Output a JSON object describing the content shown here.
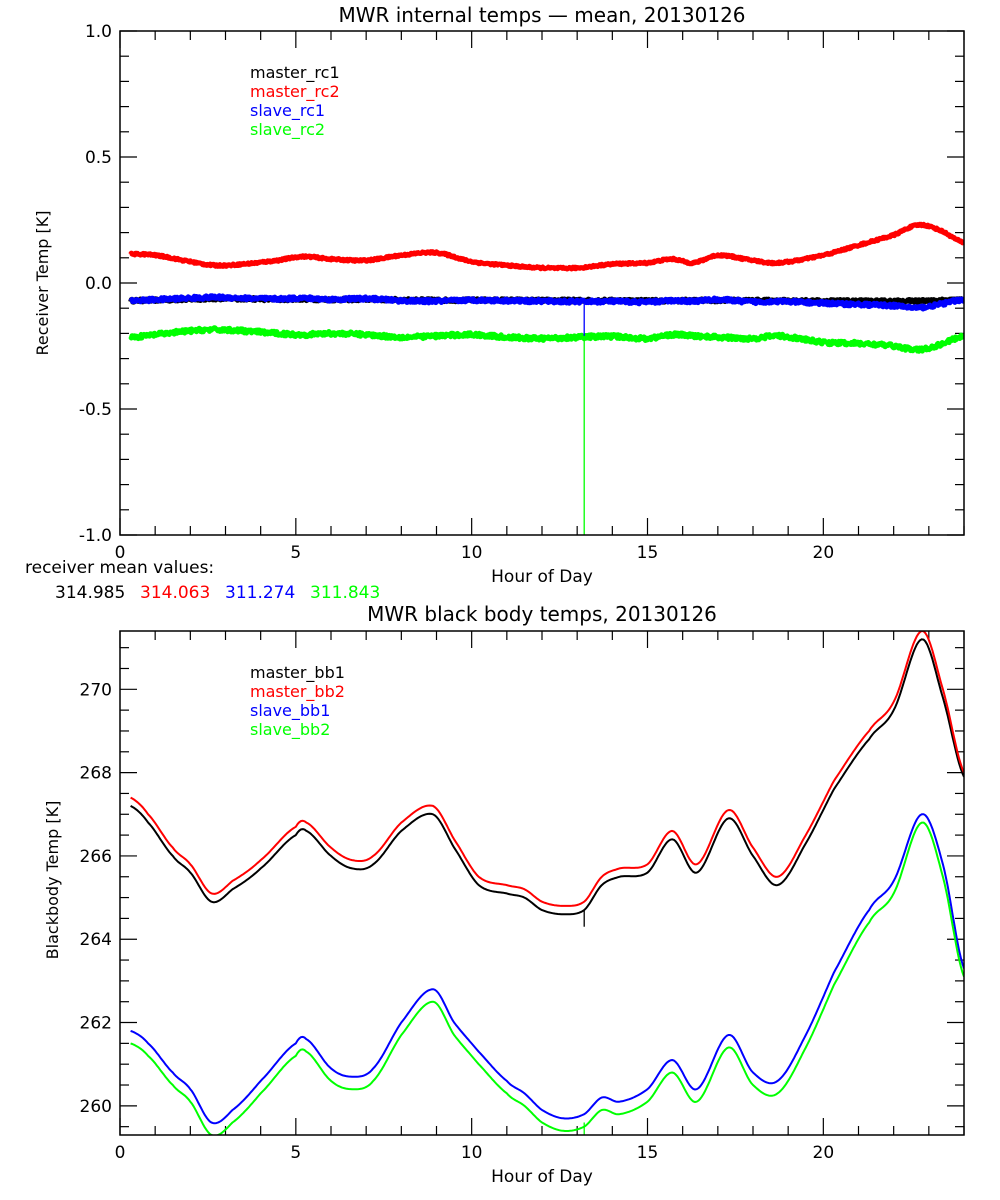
{
  "chart_data": [
    {
      "type": "line",
      "title": "MWR internal temps — mean, 20130126",
      "xlabel": "Hour of Day",
      "ylabel": "Receiver Temp [K]",
      "xlim": [
        0,
        24
      ],
      "ylim": [
        -1.0,
        1.0
      ],
      "xticks": [
        "0",
        "5",
        "10",
        "15",
        "20"
      ],
      "yticks": [
        "1.0",
        "0.5",
        "0.0",
        "-0.5",
        "-1.0"
      ],
      "ytick_values": [
        1.0,
        0.5,
        0.0,
        -0.5,
        -1.0
      ],
      "xtick_values": [
        0,
        5,
        10,
        15,
        20
      ],
      "legend_position": "top-left",
      "legend": [
        "master_rc1",
        "master_rc2",
        "slave_rc1",
        "slave_rc2"
      ],
      "x": [
        0.3,
        1,
        2,
        2.7,
        3.5,
        4.5,
        5.2,
        6,
        7,
        8,
        9,
        10,
        11,
        12,
        13,
        14,
        15,
        15.7,
        16.3,
        17,
        18,
        18.7,
        20,
        21,
        22,
        22.7,
        23.3,
        24
      ],
      "series": [
        {
          "name": "master_rc1",
          "color": "#000000",
          "noise": 0.006,
          "values": [
            -0.07,
            -0.068,
            -0.065,
            -0.062,
            -0.063,
            -0.065,
            -0.064,
            -0.066,
            -0.065,
            -0.067,
            -0.068,
            -0.068,
            -0.068,
            -0.069,
            -0.069,
            -0.069,
            -0.07,
            -0.07,
            -0.069,
            -0.069,
            -0.069,
            -0.07,
            -0.071,
            -0.072,
            -0.072,
            -0.071,
            -0.07,
            -0.066
          ]
        },
        {
          "name": "master_rc2",
          "color": "#ff0000",
          "noise": 0.004,
          "values": [
            0.115,
            0.11,
            0.085,
            0.07,
            0.075,
            0.09,
            0.105,
            0.095,
            0.09,
            0.11,
            0.12,
            0.085,
            0.07,
            0.06,
            0.06,
            0.075,
            0.08,
            0.095,
            0.08,
            0.11,
            0.09,
            0.08,
            0.11,
            0.15,
            0.19,
            0.23,
            0.21,
            0.16
          ]
        },
        {
          "name": "slave_rc1",
          "color": "#0000ff",
          "noise": 0.007,
          "values": [
            -0.07,
            -0.066,
            -0.06,
            -0.057,
            -0.06,
            -0.063,
            -0.06,
            -0.065,
            -0.062,
            -0.07,
            -0.072,
            -0.068,
            -0.07,
            -0.072,
            -0.074,
            -0.073,
            -0.076,
            -0.07,
            -0.072,
            -0.066,
            -0.075,
            -0.073,
            -0.08,
            -0.085,
            -0.09,
            -0.098,
            -0.085,
            -0.065
          ]
        },
        {
          "name": "slave_rc2",
          "color": "#00ff00",
          "noise": 0.008,
          "values": [
            -0.215,
            -0.205,
            -0.19,
            -0.185,
            -0.19,
            -0.2,
            -0.205,
            -0.2,
            -0.205,
            -0.215,
            -0.21,
            -0.205,
            -0.215,
            -0.22,
            -0.215,
            -0.212,
            -0.22,
            -0.205,
            -0.21,
            -0.215,
            -0.22,
            -0.21,
            -0.235,
            -0.24,
            -0.25,
            -0.265,
            -0.245,
            -0.21
          ]
        }
      ],
      "spikes": [
        {
          "x": 13.2,
          "color": "#00ff00",
          "from": -0.21,
          "to": -1.0
        },
        {
          "x": 13.2,
          "color": "#0000ff",
          "from": -0.07,
          "to": -0.21
        }
      ]
    },
    {
      "type": "line",
      "title": "MWR black body temps, 20130126",
      "xlabel": "Hour of Day",
      "ylabel": "Blackbody Temp [K]",
      "xlim": [
        0,
        24
      ],
      "ylim": [
        259.3,
        271.4
      ],
      "xticks": [
        "0",
        "5",
        "10",
        "15",
        "20"
      ],
      "xtick_values": [
        0,
        5,
        10,
        15,
        20
      ],
      "yticks": [
        "260",
        "262",
        "264",
        "266",
        "268",
        "270"
      ],
      "ytick_values": [
        260,
        262,
        264,
        266,
        268,
        270
      ],
      "legend_position": "top-left",
      "legend": [
        "master_bb1",
        "master_bb2",
        "slave_bb1",
        "slave_bb2"
      ],
      "x": [
        0.3,
        0.8,
        1.5,
        2.0,
        2.6,
        3.2,
        4.0,
        5.0,
        5.3,
        6.0,
        6.6,
        7.2,
        8.0,
        8.9,
        9.5,
        10.2,
        11.0,
        11.5,
        12.0,
        12.6,
        13.2,
        13.7,
        14.2,
        15.0,
        15.7,
        16.4,
        17.3,
        18.0,
        18.7,
        19.5,
        20.3,
        21.3,
        22.0,
        22.8,
        23.4,
        24.0
      ],
      "series": [
        {
          "name": "master_bb1",
          "color": "#000000",
          "values": [
            267.2,
            266.8,
            266.0,
            265.6,
            264.9,
            265.2,
            265.7,
            266.5,
            266.6,
            266.0,
            265.7,
            265.8,
            266.6,
            267.0,
            266.2,
            265.3,
            265.1,
            265.0,
            264.7,
            264.6,
            264.7,
            265.3,
            265.5,
            265.6,
            266.4,
            265.6,
            266.9,
            266.0,
            265.3,
            266.3,
            267.6,
            268.8,
            269.5,
            271.2,
            269.8,
            267.9
          ]
        },
        {
          "name": "master_bb2",
          "color": "#ff0000",
          "values": [
            267.4,
            267.0,
            266.2,
            265.8,
            265.1,
            265.4,
            265.9,
            266.7,
            266.8,
            266.2,
            265.9,
            266.0,
            266.8,
            267.2,
            266.4,
            265.5,
            265.3,
            265.2,
            264.9,
            264.8,
            264.9,
            265.5,
            265.7,
            265.8,
            266.6,
            265.8,
            267.1,
            266.2,
            265.5,
            266.5,
            267.8,
            269.0,
            269.7,
            271.4,
            270.0,
            268.0
          ]
        },
        {
          "name": "slave_bb1",
          "color": "#0000ff",
          "values": [
            261.8,
            261.5,
            260.8,
            260.4,
            259.6,
            259.9,
            260.6,
            261.5,
            261.6,
            260.9,
            260.7,
            260.9,
            262.0,
            262.8,
            262.0,
            261.3,
            260.6,
            260.3,
            259.9,
            259.7,
            259.8,
            260.2,
            260.1,
            260.4,
            261.1,
            260.4,
            261.7,
            260.8,
            260.6,
            261.7,
            263.2,
            264.7,
            265.4,
            267.0,
            265.8,
            263.3
          ]
        },
        {
          "name": "slave_bb2",
          "color": "#00ff00",
          "values": [
            261.5,
            261.2,
            260.5,
            260.1,
            259.3,
            259.6,
            260.3,
            261.2,
            261.3,
            260.6,
            260.4,
            260.6,
            261.7,
            262.5,
            261.7,
            261.0,
            260.3,
            260.0,
            259.6,
            259.4,
            259.5,
            259.9,
            259.8,
            260.1,
            260.8,
            260.1,
            261.4,
            260.5,
            260.3,
            261.4,
            262.9,
            264.4,
            265.1,
            266.8,
            265.5,
            263.1
          ]
        }
      ],
      "spikes": [
        {
          "x": 13.2,
          "color": "#000000",
          "from": 264.7,
          "to": 264.3
        },
        {
          "x": 13.2,
          "color": "#00ff00",
          "from": 259.6,
          "to": 259.3
        }
      ]
    }
  ],
  "receiver_mean": {
    "label": "receiver mean values:",
    "values": [
      {
        "text": "314.985",
        "color": "#000000"
      },
      {
        "text": "314.063",
        "color": "#ff0000"
      },
      {
        "text": "311.274",
        "color": "#0000ff"
      },
      {
        "text": "311.843",
        "color": "#00ff00"
      }
    ]
  }
}
